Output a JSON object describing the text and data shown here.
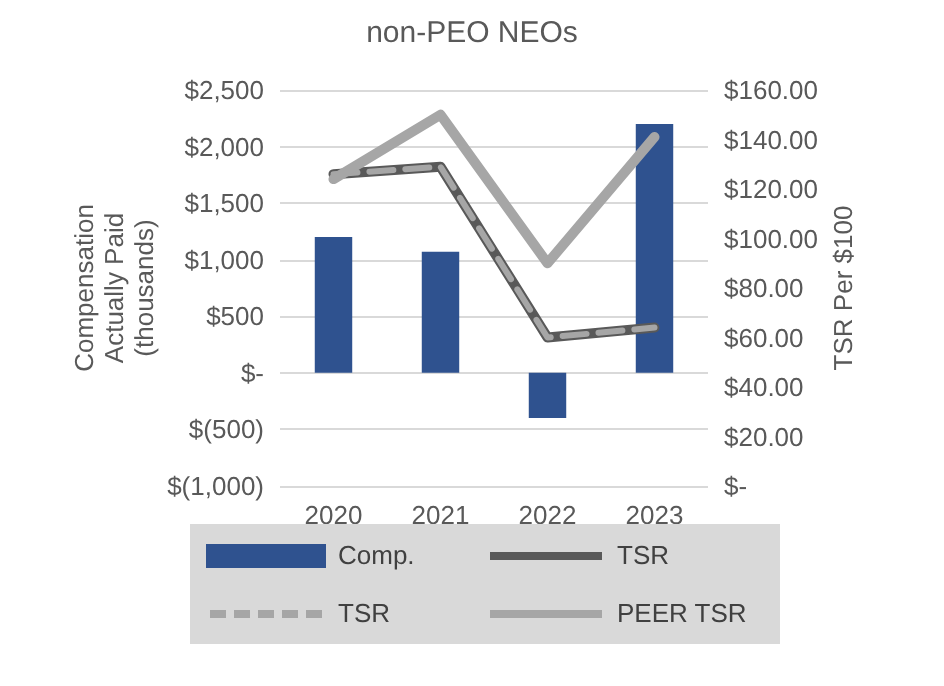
{
  "chart_data": {
    "type": "bar",
    "title": "non-PEO NEOs",
    "ylabel": "Compensation\nActually Paid\n(thousands)",
    "y2label": "TSR Per $100",
    "categories": [
      "2020",
      "2021",
      "2022",
      "2023"
    ],
    "series": [
      {
        "name": "Comp.",
        "color": "#2f528f",
        "values": [
          1200,
          1070,
          -400,
          2200
        ]
      },
      {
        "name": "TSR",
        "type": "line",
        "axis": "y2",
        "color": "#595959",
        "line_style": "solid",
        "values": [
          126,
          129,
          60,
          64
        ]
      },
      {
        "name": "TSR",
        "type": "line",
        "axis": "y2",
        "color": "#a6a6a6",
        "line_style": "dashed",
        "values": [
          126,
          129,
          60,
          64
        ]
      },
      {
        "name": "PEER TSR",
        "type": "line",
        "axis": "y2",
        "color": "#a6a6a6",
        "line_style": "solid",
        "values": [
          124,
          150,
          90,
          141
        ]
      }
    ],
    "ylim": [
      -1000,
      2500
    ],
    "yticks": [
      {
        "value": -1000,
        "label": "$(1,000)"
      },
      {
        "value": -500,
        "label": "$(500)"
      },
      {
        "value": 0,
        "label": "$-"
      },
      {
        "value": 500,
        "label": "$500"
      },
      {
        "value": 1000,
        "label": "$1,000"
      },
      {
        "value": 1500,
        "label": "$1,500"
      },
      {
        "value": 2000,
        "label": "$2,000"
      },
      {
        "value": 2500,
        "label": "$2,500"
      }
    ],
    "y2lim": [
      0,
      160
    ],
    "y2ticks": [
      {
        "value": 0,
        "label": "$-"
      },
      {
        "value": 20,
        "label": "$20.00"
      },
      {
        "value": 40,
        "label": "$40.00"
      },
      {
        "value": 60,
        "label": "$60.00"
      },
      {
        "value": 80,
        "label": "$80.00"
      },
      {
        "value": 100,
        "label": "$100.00"
      },
      {
        "value": 120,
        "label": "$120.00"
      },
      {
        "value": 140,
        "label": "$140.00"
      },
      {
        "value": 160,
        "label": "$160.00"
      }
    ],
    "grid": "y",
    "legend": "bottom",
    "marker": "none"
  }
}
